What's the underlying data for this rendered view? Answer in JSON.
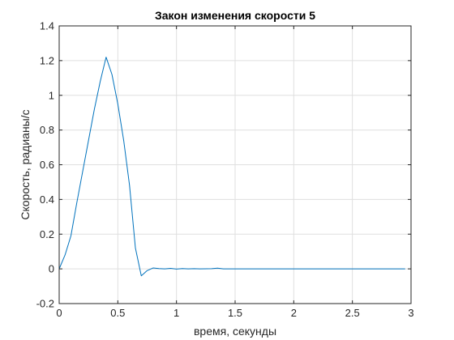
{
  "chart_data": {
    "type": "line",
    "title": "Закон изменения скорости 5",
    "xlabel": "время, секунды",
    "ylabel": "Скорость, радианы/с",
    "xlim": [
      0,
      3
    ],
    "ylim": [
      -0.2,
      1.4
    ],
    "xticks": [
      0,
      0.5,
      1,
      1.5,
      2,
      2.5,
      3
    ],
    "xtick_labels": [
      "0",
      "0.5",
      "1",
      "1.5",
      "2",
      "2.5",
      "3"
    ],
    "yticks": [
      -0.2,
      0,
      0.2,
      0.4,
      0.6,
      0.8,
      1,
      1.2,
      1.4
    ],
    "ytick_labels": [
      "-0.2",
      "0",
      "0.2",
      "0.4",
      "0.6",
      "0.8",
      "1",
      "1.2",
      "1.4"
    ],
    "grid": true,
    "box": true,
    "series": [
      {
        "color": "#0072bd",
        "x": [
          0,
          0.05,
          0.1,
          0.15,
          0.2,
          0.25,
          0.3,
          0.35,
          0.4,
          0.45,
          0.5,
          0.55,
          0.6,
          0.65,
          0.7,
          0.75,
          0.8,
          0.85,
          0.9,
          0.95,
          1.0,
          1.05,
          1.1,
          1.15,
          1.2,
          1.3,
          1.35,
          1.4,
          1.5,
          1.6,
          1.7,
          1.8,
          1.9,
          2.0,
          2.1,
          2.2,
          2.3,
          2.4,
          2.5,
          2.6,
          2.7,
          2.8,
          2.9,
          2.95
        ],
        "y": [
          0,
          0.08,
          0.19,
          0.38,
          0.56,
          0.74,
          0.92,
          1.08,
          1.22,
          1.12,
          0.95,
          0.74,
          0.48,
          0.12,
          -0.04,
          -0.01,
          0.005,
          0.002,
          0.0,
          0.003,
          -0.001,
          0.002,
          0.0,
          0.001,
          0.0,
          0.001,
          0.004,
          0.0,
          0.0,
          0.0,
          0.0,
          0.0,
          0.0,
          0.0,
          0.0,
          0.0,
          0.0,
          0.0,
          0.0,
          0.0,
          0.0,
          0.0,
          0.0,
          0.0
        ]
      }
    ]
  }
}
